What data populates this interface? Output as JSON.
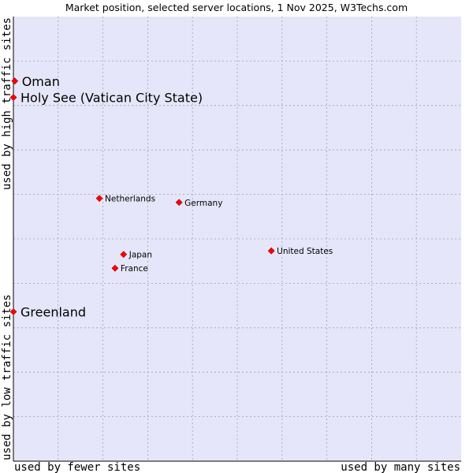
{
  "chart_data": {
    "type": "scatter",
    "title": "Market position, selected server locations, 1 Nov 2025, W3Techs.com",
    "xlabel_left": "used by fewer sites",
    "xlabel_right": "used by many sites",
    "ylabel_top": "used by high traffic sites",
    "ylabel_bottom": "used by low traffic sites",
    "xlim": [
      0,
      100
    ],
    "ylim": [
      0,
      100
    ],
    "grid": true,
    "colors": {
      "plot_background": "#e6e6fa",
      "grid": "#a0a0a8",
      "axis": "#000000",
      "marker": "#ff0000",
      "marker_edge": "#aa0000"
    },
    "points": [
      {
        "label": "Oman",
        "x": 0.3,
        "y": 85.5,
        "emphasis": true
      },
      {
        "label": "Holy See (Vatican City State)",
        "x": 0.0,
        "y": 81.8,
        "emphasis": true
      },
      {
        "label": "Netherlands",
        "x": 19.2,
        "y": 59.1,
        "emphasis": false
      },
      {
        "label": "Germany",
        "x": 37.0,
        "y": 58.2,
        "emphasis": false
      },
      {
        "label": "United States",
        "x": 57.6,
        "y": 47.3,
        "emphasis": false
      },
      {
        "label": "Japan",
        "x": 24.6,
        "y": 46.5,
        "emphasis": false
      },
      {
        "label": "France",
        "x": 22.7,
        "y": 43.4,
        "emphasis": false
      },
      {
        "label": "Greenland",
        "x": 0.0,
        "y": 33.6,
        "emphasis": true
      }
    ]
  }
}
